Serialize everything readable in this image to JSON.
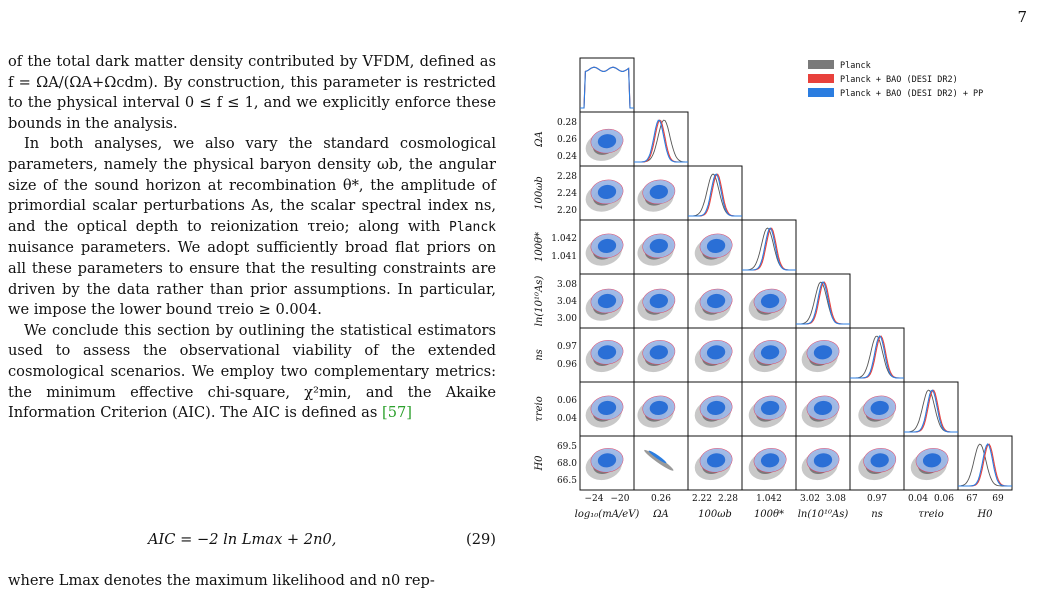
{
  "page_number": "7",
  "text": {
    "p1": "of the total dark matter density contributed by VFDM, defined as f = ΩA/(ΩA+Ωcdm). By construction, this parameter is restricted to the physical interval 0 ≤ f ≤ 1, and we explicitly enforce these bounds in the analysis.",
    "p2a": "In both analyses, we also vary the standard cosmological parameters, namely the physical baryon density ωb, the angular size of the sound horizon at recombination θ*, the amplitude of primordial scalar perturbations As, the scalar spectral index ns, and the optical depth to reionization τreio; along with ",
    "p2_planck": "Planck",
    "p2b": " nuisance parameters. We adopt sufficiently broad flat priors on all these parameters to ensure that the resulting constraints are driven by the data rather than prior assumptions. In particular, we impose the lower bound τreio ≥ 0.004.",
    "p3": "We conclude this section by outlining the statistical estimators used to assess the observational viability of the extended cosmological scenarios. We employ two complementary metrics: the minimum effective chi-square, χ²min, and the Akaike Information Criterion (AIC). The AIC is defined as ",
    "p3_cite": "[57]",
    "equation": "AIC = −2 ln Lmax + 2n0,",
    "equation_number": "(29)",
    "trailing": "where Lmax denotes the maximum likelihood and n0 rep-"
  },
  "chart_data": {
    "type": "triangle",
    "parameters": [
      "log10(mA/eV)",
      "ΩA",
      "100ωb",
      "100θ*",
      "ln(10^10 As)",
      "ns",
      "τreio",
      "H0"
    ],
    "xlabels": [
      "log₁₀(mA/eV)",
      "ΩA",
      "100ωb",
      "100θ*",
      "ln(10¹⁰As)",
      "ns",
      "τreio",
      "H0"
    ],
    "ylabels": [
      "ΩA",
      "100ωb",
      "100θ*",
      "ln(10¹⁰As)",
      "ns",
      "τreio",
      "H0"
    ],
    "xticks": [
      [
        "−24",
        "−20"
      ],
      [
        "0.26"
      ],
      [
        "2.22",
        "2.28"
      ],
      [
        "1.042"
      ],
      [
        "3.02",
        "3.08"
      ],
      [
        "0.97"
      ],
      [
        "0.04",
        "0.06"
      ],
      [
        "67",
        "69"
      ]
    ],
    "yticks": [
      [
        "0.28",
        "0.26",
        "0.24"
      ],
      [
        "2.28",
        "2.24",
        "2.20"
      ],
      [
        "1.042",
        "1.041"
      ],
      [
        "3.08",
        "3.04",
        "3.00"
      ],
      [
        "0.97",
        "0.96"
      ],
      [
        "0.06",
        "0.04"
      ],
      [
        "69.5",
        "68.0",
        "66.5"
      ]
    ],
    "means": {
      "Planck": [
        -22,
        0.263,
        2.236,
        1.0419,
        3.04,
        0.966,
        0.052,
        67.4
      ],
      "Planck + BAO (DESI DR2)": [
        -22,
        0.255,
        2.244,
        1.0421,
        3.05,
        0.971,
        0.058,
        68.6
      ],
      "Planck + BAO (DESI DR2) + PP": [
        -22,
        0.255,
        2.244,
        1.0421,
        3.05,
        0.97,
        0.057,
        68.5
      ]
    },
    "series": [
      {
        "name": "Planck",
        "color": "#808080"
      },
      {
        "name": "Planck + BAO (DESI DR2)",
        "color": "#e8413c"
      },
      {
        "name": "Planck + BAO (DESI DR2) + PP",
        "color": "#2b7de0"
      }
    ],
    "legend_position": "top-right"
  }
}
